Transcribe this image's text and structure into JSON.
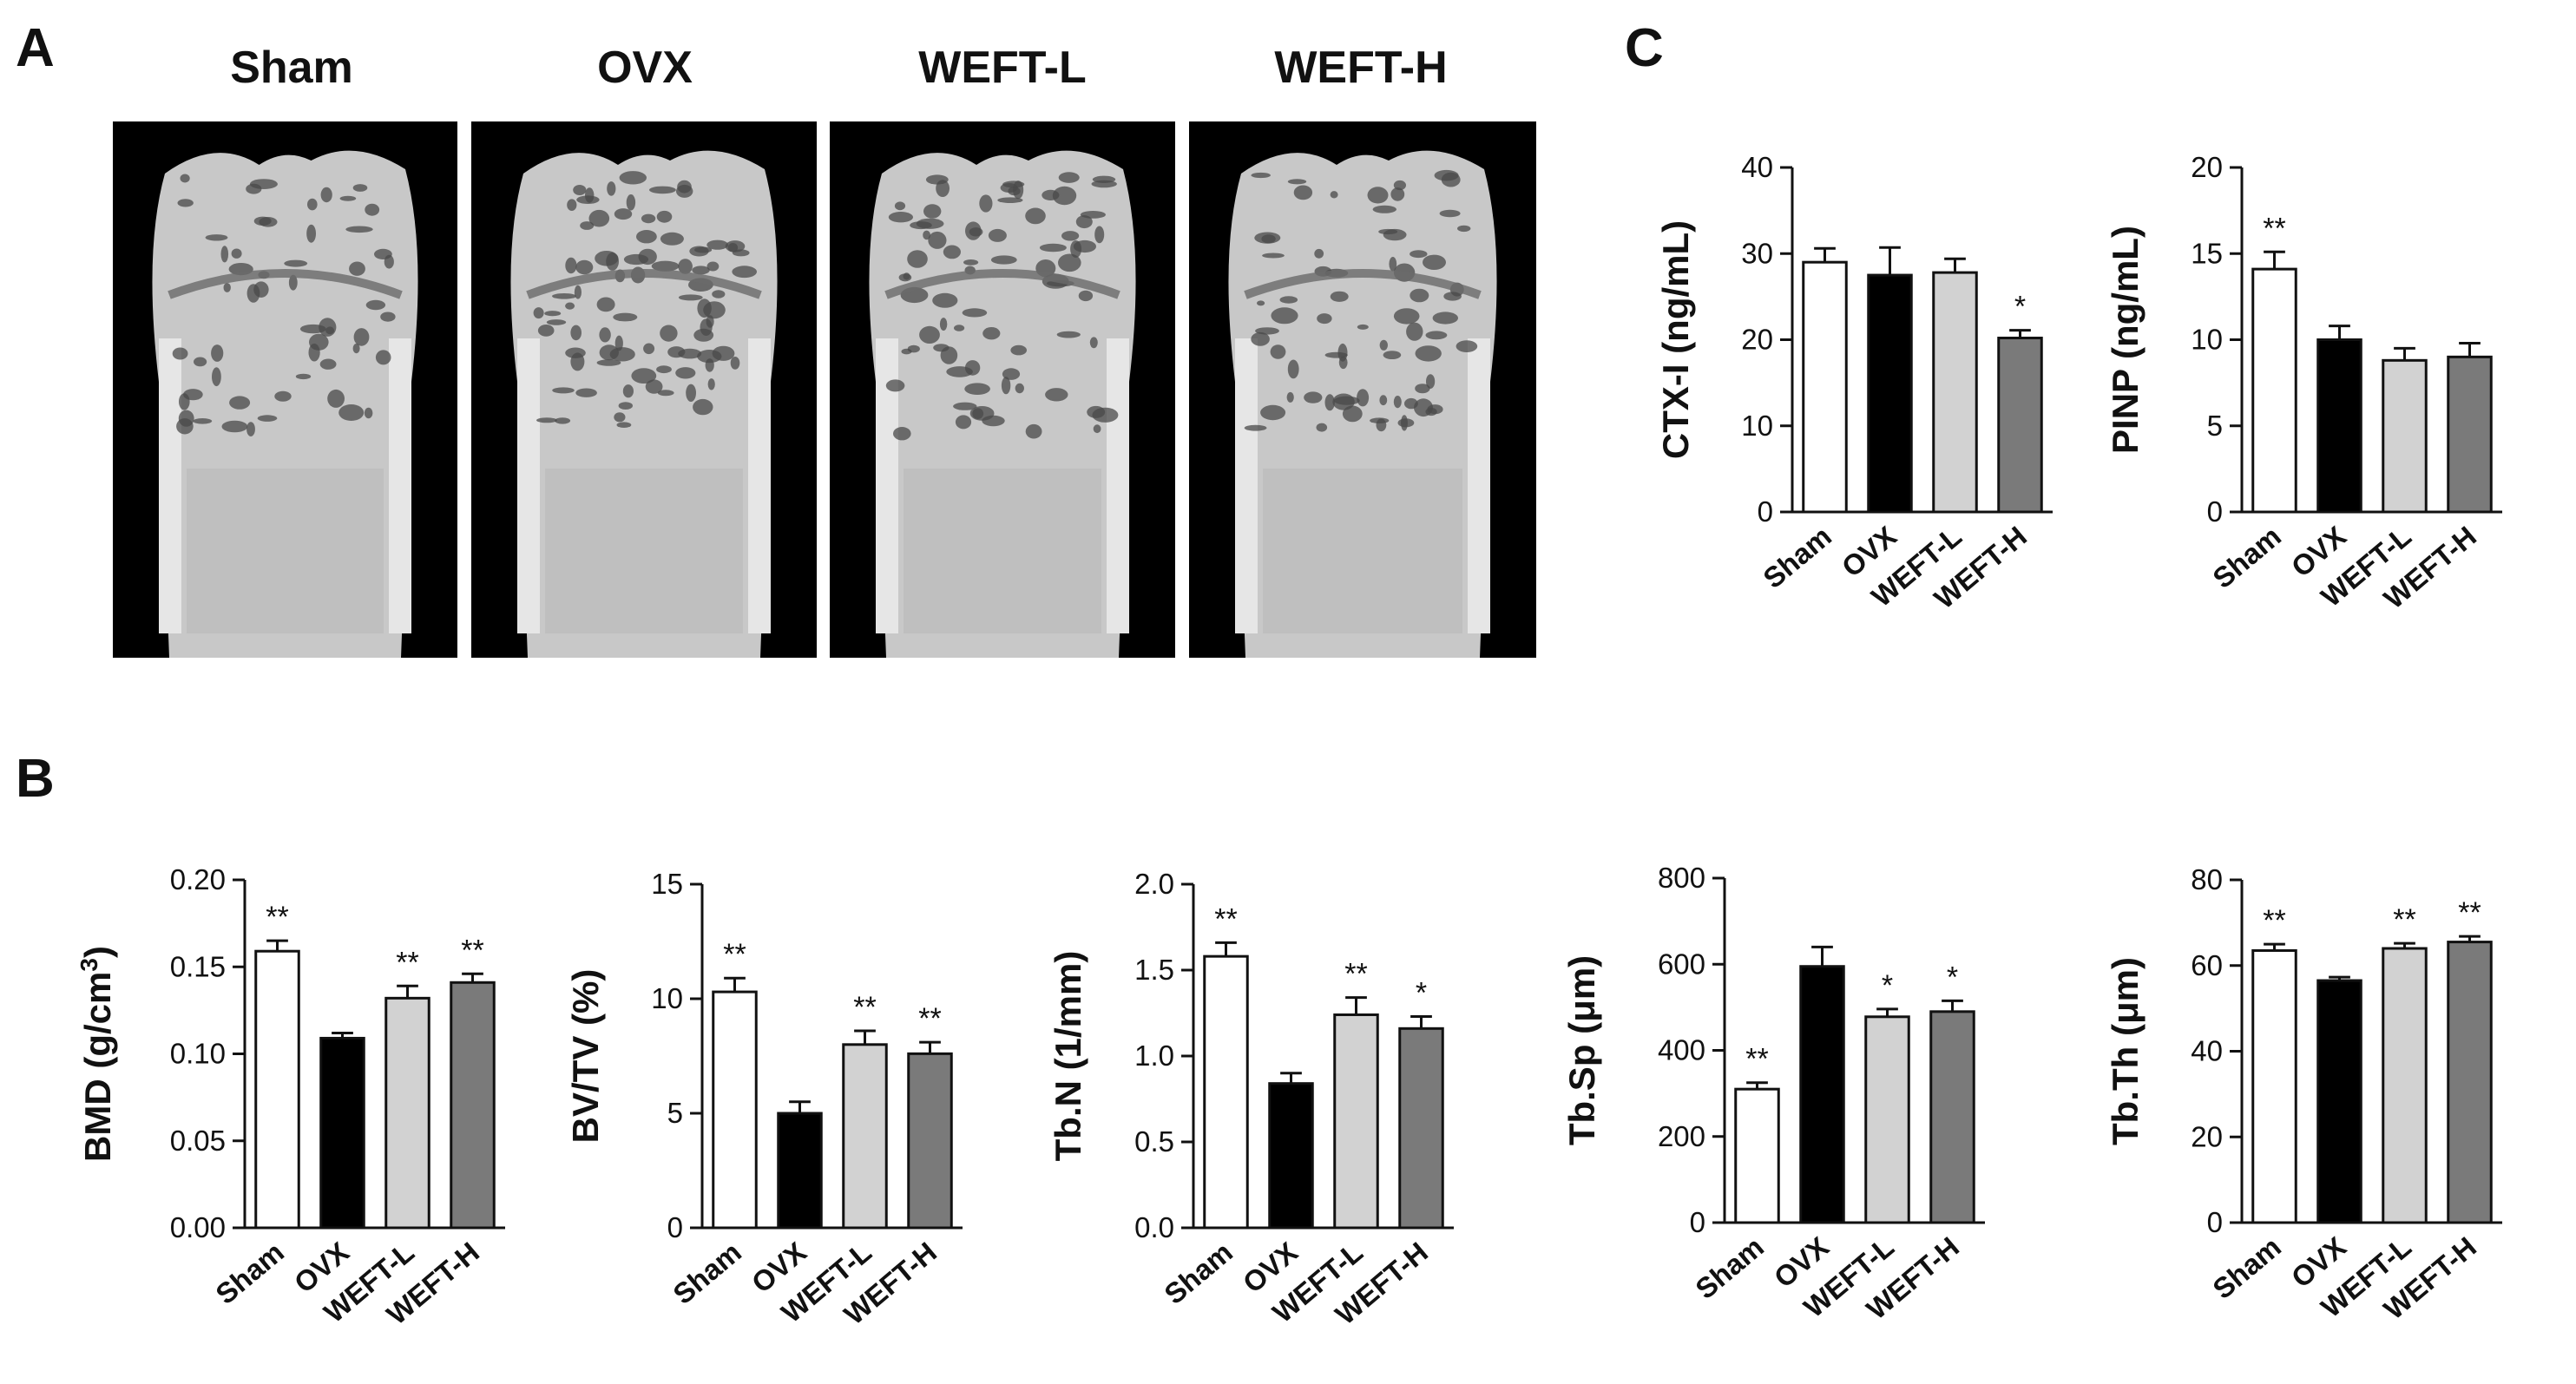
{
  "panels": {
    "A": "A",
    "B": "B",
    "C": "C"
  },
  "micro_ct": {
    "groups": [
      "Sham",
      "OVX",
      "WEFT-L",
      "WEFT-H"
    ]
  },
  "colors": {
    "Sham": "#ffffff",
    "OVX": "#000000",
    "WEFT-L": "#d2d2d2",
    "WEFT-H": "#7a7a7a",
    "axis": "#111111",
    "image_bg": "#000000",
    "bone": "#c8c8c8"
  },
  "chart_data": [
    {
      "id": "ctx",
      "panel": "C",
      "type": "bar",
      "categories": [
        "Sham",
        "OVX",
        "WEFT-L",
        "WEFT-H"
      ],
      "values": [
        29.0,
        27.5,
        27.8,
        20.2
      ],
      "errors": [
        1.6,
        3.2,
        1.6,
        0.9
      ],
      "significance": [
        "",
        "",
        "",
        "*"
      ],
      "ylabel": "CTX-I (ng/mL)",
      "ylim": [
        0,
        40
      ],
      "yticks": [
        0,
        10,
        20,
        30,
        40
      ],
      "yticklabels": [
        "0",
        "10",
        "20",
        "30",
        "40"
      ]
    },
    {
      "id": "pinp",
      "panel": "C",
      "type": "bar",
      "categories": [
        "Sham",
        "OVX",
        "WEFT-L",
        "WEFT-H"
      ],
      "values": [
        14.1,
        10.0,
        8.8,
        9.0
      ],
      "errors": [
        1.0,
        0.8,
        0.7,
        0.8
      ],
      "significance": [
        "**",
        "",
        "",
        ""
      ],
      "ylabel": "PINP (ng/mL)",
      "ylim": [
        0,
        20
      ],
      "yticks": [
        0,
        5,
        10,
        15,
        20
      ],
      "yticklabels": [
        "0",
        "5",
        "10",
        "15",
        "20"
      ]
    },
    {
      "id": "bmd",
      "panel": "B",
      "type": "bar",
      "categories": [
        "Sham",
        "OVX",
        "WEFT-L",
        "WEFT-H"
      ],
      "values": [
        0.159,
        0.109,
        0.132,
        0.141
      ],
      "errors": [
        0.006,
        0.003,
        0.007,
        0.005
      ],
      "significance": [
        "**",
        "",
        "**",
        "**"
      ],
      "ylabel": "BMD (g/cm",
      "ylabel_sup": "3",
      "ylabel_end": ")",
      "ylim": [
        0,
        0.2
      ],
      "yticks": [
        0,
        0.05,
        0.1,
        0.15,
        0.2
      ],
      "yticklabels": [
        "0.00",
        "0.05",
        "0.10",
        "0.15",
        "0.20"
      ]
    },
    {
      "id": "bvtv",
      "panel": "B",
      "type": "bar",
      "categories": [
        "Sham",
        "OVX",
        "WEFT-L",
        "WEFT-H"
      ],
      "values": [
        10.3,
        5.0,
        8.0,
        7.6
      ],
      "errors": [
        0.6,
        0.5,
        0.6,
        0.5
      ],
      "significance": [
        "**",
        "",
        "**",
        "**"
      ],
      "ylabel": "BV/TV (%)",
      "ylim": [
        0,
        15
      ],
      "yticks": [
        0,
        5,
        10,
        15
      ],
      "yticklabels": [
        "0",
        "5",
        "10",
        "15"
      ]
    },
    {
      "id": "tbn",
      "panel": "B",
      "type": "bar",
      "categories": [
        "Sham",
        "OVX",
        "WEFT-L",
        "WEFT-H"
      ],
      "values": [
        1.58,
        0.84,
        1.24,
        1.16
      ],
      "errors": [
        0.08,
        0.06,
        0.1,
        0.07
      ],
      "significance": [
        "**",
        "",
        "**",
        "*"
      ],
      "ylabel": "Tb.N (1/mm)",
      "ylim": [
        0,
        2.0
      ],
      "yticks": [
        0,
        0.5,
        1.0,
        1.5,
        2.0
      ],
      "yticklabels": [
        "0.0",
        "0.5",
        "1.0",
        "1.5",
        "2.0"
      ]
    },
    {
      "id": "tbsp",
      "panel": "B",
      "type": "bar",
      "categories": [
        "Sham",
        "OVX",
        "WEFT-L",
        "WEFT-H"
      ],
      "values": [
        310,
        595,
        478,
        490
      ],
      "errors": [
        15,
        45,
        18,
        25
      ],
      "significance": [
        "**",
        "",
        "*",
        "*"
      ],
      "ylabel": "Tb.Sp (μm)",
      "ylim": [
        0,
        800
      ],
      "yticks": [
        0,
        200,
        400,
        600,
        800
      ],
      "yticklabels": [
        "0",
        "200",
        "400",
        "600",
        "800"
      ]
    },
    {
      "id": "tbth",
      "panel": "B",
      "type": "bar",
      "categories": [
        "Sham",
        "OVX",
        "WEFT-L",
        "WEFT-H"
      ],
      "values": [
        63.5,
        56.5,
        64.0,
        65.5
      ],
      "errors": [
        1.5,
        0.8,
        1.2,
        1.3
      ],
      "significance": [
        "**",
        "",
        "**",
        "**"
      ],
      "ylabel": "Tb.Th (μm)",
      "ylim": [
        0,
        80
      ],
      "yticks": [
        0,
        20,
        40,
        60,
        80
      ],
      "yticklabels": [
        "0",
        "20",
        "40",
        "60",
        "80"
      ]
    }
  ]
}
